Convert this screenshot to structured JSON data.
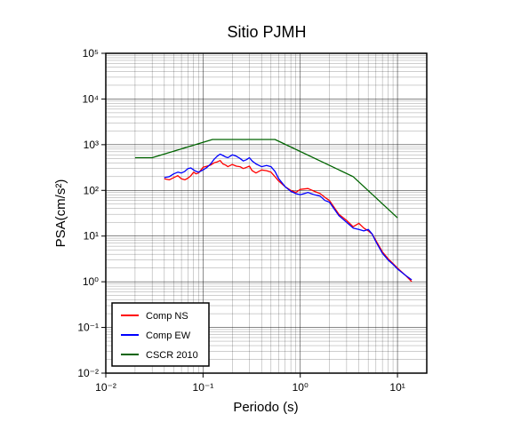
{
  "chart_data": {
    "type": "line",
    "title": "Sitio PJMH",
    "xlabel": "Periodo (s)",
    "ylabel": "PSA(cm/s²)",
    "x_scale": "log",
    "y_scale": "log",
    "xlim": [
      0.01,
      20
    ],
    "ylim": [
      0.01,
      100000
    ],
    "grid": true,
    "legend_position": "bottom-left",
    "x_tick_labels": [
      "10⁻²",
      "10⁻¹",
      "10⁰",
      "10¹"
    ],
    "y_tick_labels": [
      "10⁻²",
      "10⁻¹",
      "10⁰",
      "10¹",
      "10²",
      "10³",
      "10⁴",
      "10⁵"
    ],
    "series": [
      {
        "name": "Comp NS",
        "color": "#ff0000",
        "x": [
          0.04,
          0.045,
          0.05,
          0.055,
          0.06,
          0.065,
          0.07,
          0.075,
          0.08,
          0.085,
          0.09,
          0.1,
          0.11,
          0.12,
          0.13,
          0.14,
          0.15,
          0.16,
          0.17,
          0.18,
          0.2,
          0.22,
          0.24,
          0.26,
          0.28,
          0.3,
          0.32,
          0.35,
          0.4,
          0.45,
          0.5,
          0.55,
          0.6,
          0.7,
          0.8,
          0.9,
          1.0,
          1.2,
          1.4,
          1.6,
          1.8,
          2.0,
          2.5,
          3.0,
          3.5,
          4.0,
          4.5,
          5.0,
          5.5,
          6.0,
          7.0,
          8.0,
          9.0,
          10.0,
          12.0,
          14.0
        ],
        "y": [
          180,
          170,
          190,
          210,
          180,
          170,
          185,
          210,
          250,
          230,
          240,
          320,
          340,
          360,
          400,
          420,
          450,
          380,
          360,
          330,
          370,
          340,
          330,
          300,
          320,
          340,
          270,
          240,
          280,
          270,
          250,
          200,
          160,
          120,
          100,
          90,
          105,
          110,
          95,
          85,
          70,
          60,
          30,
          22,
          16,
          19,
          15,
          13,
          11,
          8,
          4.5,
          3.2,
          2.5,
          2.0,
          1.4,
          1.0
        ]
      },
      {
        "name": "Comp EW",
        "color": "#0000ff",
        "x": [
          0.04,
          0.045,
          0.05,
          0.055,
          0.06,
          0.065,
          0.07,
          0.075,
          0.08,
          0.085,
          0.09,
          0.1,
          0.11,
          0.12,
          0.13,
          0.14,
          0.15,
          0.16,
          0.17,
          0.18,
          0.2,
          0.22,
          0.24,
          0.26,
          0.28,
          0.3,
          0.32,
          0.35,
          0.4,
          0.45,
          0.5,
          0.55,
          0.6,
          0.7,
          0.8,
          0.9,
          1.0,
          1.2,
          1.4,
          1.6,
          1.8,
          2.0,
          2.5,
          3.0,
          3.5,
          4.0,
          4.5,
          5.0,
          5.5,
          6.0,
          7.0,
          8.0,
          9.0,
          10.0,
          12.0,
          14.0
        ],
        "y": [
          190,
          200,
          230,
          250,
          240,
          260,
          300,
          310,
          280,
          260,
          250,
          280,
          320,
          380,
          480,
          560,
          620,
          580,
          540,
          520,
          600,
          560,
          500,
          440,
          470,
          520,
          440,
          380,
          330,
          350,
          330,
          260,
          180,
          120,
          95,
          85,
          80,
          90,
          80,
          75,
          60,
          55,
          28,
          20,
          15,
          14,
          13,
          14,
          11,
          7.5,
          4.2,
          3.0,
          2.4,
          1.9,
          1.4,
          1.1
        ]
      },
      {
        "name": "CSCR 2010",
        "color": "#006400",
        "x": [
          0.02,
          0.03,
          0.125,
          0.55,
          3.5,
          10.0
        ],
        "y": [
          520,
          520,
          1300,
          1300,
          200,
          25
        ]
      }
    ]
  }
}
